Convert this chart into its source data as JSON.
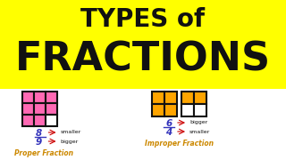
{
  "bg_color": "#FFFF00",
  "title_line1": "TYPES of",
  "title_line2": "FRACTIONS",
  "title_color": "#111111",
  "title_fontsize1": 20,
  "title_fontsize2": 32,
  "proper_color_filled": "#FF69B4",
  "proper_color_empty": "#FFFFFF",
  "proper_border": "#111111",
  "proper_numerator": "8",
  "proper_denominator": "9",
  "proper_label_smaller": "smaller",
  "proper_label_bigger": "bigger",
  "proper_title": "Proper Fraction",
  "improper_color_filled": "#FFA500",
  "improper_color_empty": "#FFFFFF",
  "improper_border": "#111111",
  "improper_numerator": "6",
  "improper_denominator": "4",
  "improper_label_bigger": "bigger",
  "improper_label_smaller": "smaller",
  "improper_title": "Improper Fraction",
  "fraction_color": "#3333BB",
  "label_color": "#111111",
  "arrow_color": "#CC0000",
  "bottom_bg": "#FFFFFF",
  "proper_title_color": "#CC8800",
  "improper_title_color": "#CC8800"
}
